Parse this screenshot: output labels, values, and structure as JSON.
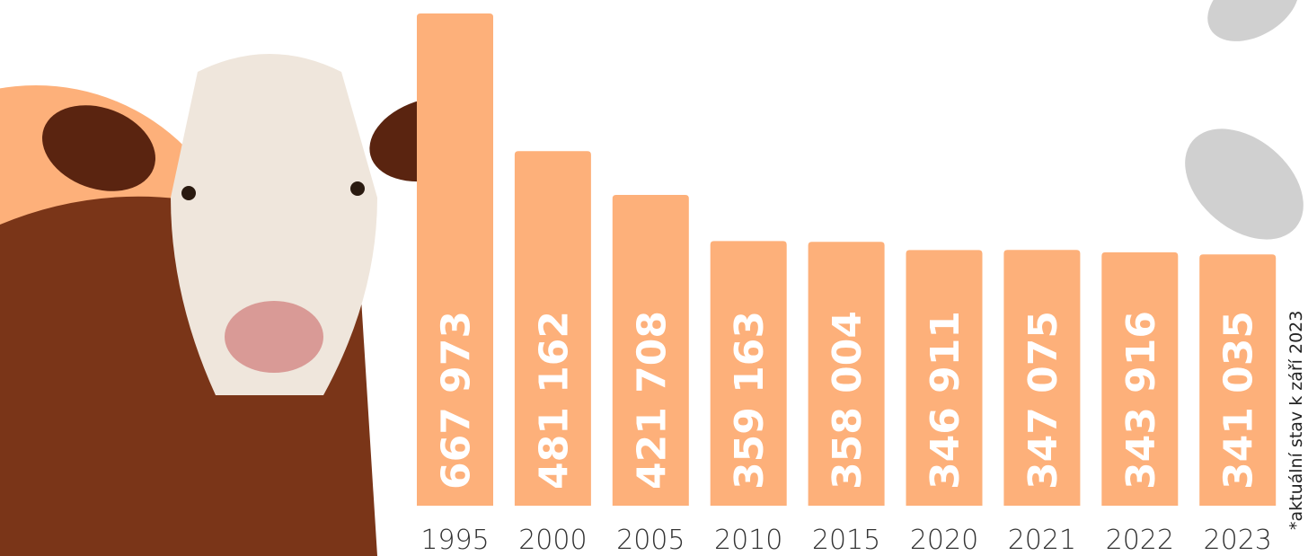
{
  "chart_data": {
    "type": "bar",
    "categories": [
      "1995",
      "2000",
      "2005",
      "2010",
      "2015",
      "2020",
      "2021",
      "2022",
      "2023"
    ],
    "values": [
      667973,
      481162,
      421708,
      359163,
      358004,
      346911,
      347075,
      343916,
      341035
    ],
    "value_labels": [
      "667 973",
      "481 162",
      "421 708",
      "359 163",
      "358 004",
      "346 911",
      "347 075",
      "343 916",
      "341 035"
    ],
    "color": "#fdb07a",
    "footnote": "*aktuální stav k září 2023"
  }
}
